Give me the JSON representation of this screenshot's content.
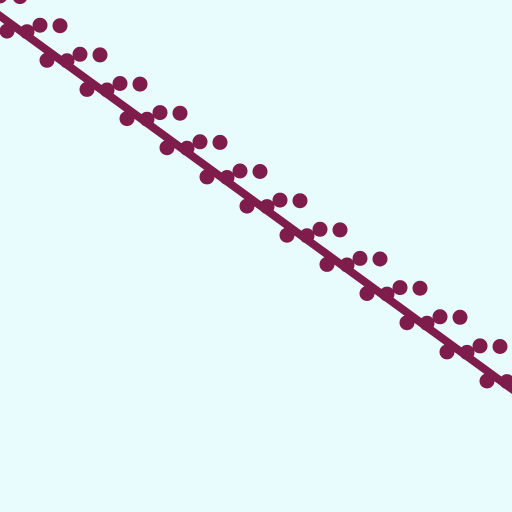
{
  "colors": {
    "background": "#e8fbfd",
    "ink": "#7e1c4c"
  },
  "graphic": {
    "description_elements": [
      "diagonal-stripe-line",
      "dot-pattern-band"
    ],
    "dot_rows": 3
  }
}
